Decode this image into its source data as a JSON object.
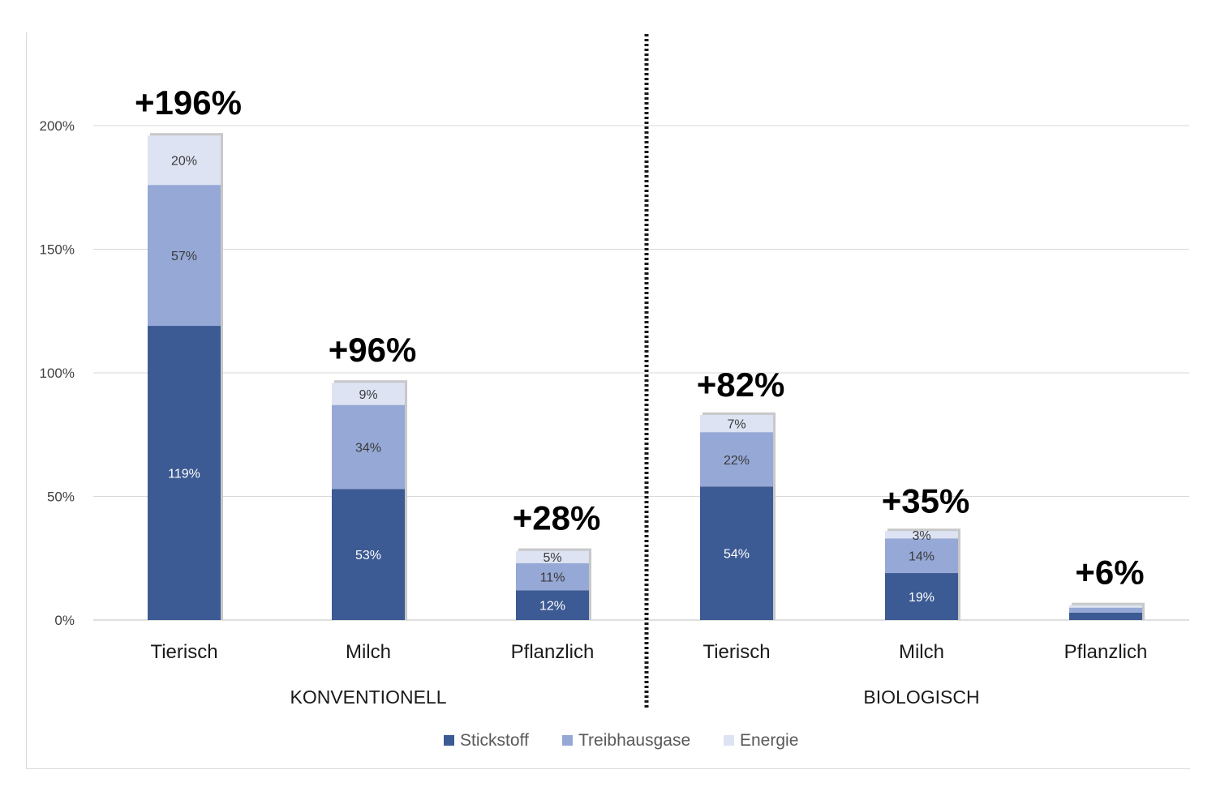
{
  "chart_data": {
    "type": "bar",
    "stacked": true,
    "groups": [
      {
        "label": "KONVENTIONELL",
        "categories": [
          "Tierisch",
          "Milch",
          "Pflanzlich"
        ]
      },
      {
        "label": "BIOLOGISCH",
        "categories": [
          "Tierisch",
          "Milch",
          "Pflanzlich"
        ]
      }
    ],
    "categories": [
      "Tierisch",
      "Milch",
      "Pflanzlich",
      "Tierisch",
      "Milch",
      "Pflanzlich"
    ],
    "series": [
      {
        "name": "Stickstoff",
        "color": "#3c5a93",
        "label_color": "#ffffff",
        "values": [
          119,
          53,
          12,
          54,
          19,
          3
        ],
        "labels": [
          "119%",
          "53%",
          "12%",
          "54%",
          "19%",
          ""
        ]
      },
      {
        "name": "Treibhausgase",
        "color": "#96a8d6",
        "label_color": "#3a3a3a",
        "values": [
          57,
          34,
          11,
          22,
          14,
          2
        ],
        "labels": [
          "57%",
          "34%",
          "11%",
          "22%",
          "14%",
          ""
        ]
      },
      {
        "name": "Energie",
        "color": "#dde3f3",
        "label_color": "#3a3a3a",
        "values": [
          20,
          9,
          5,
          7,
          3,
          1
        ],
        "labels": [
          "20%",
          "9%",
          "5%",
          "7%",
          "3%",
          ""
        ]
      }
    ],
    "totals": [
      "+196%",
      "+96%",
      "+28%",
      "+82%",
      "+35%",
      "+6%"
    ],
    "total_values": [
      196,
      96,
      28,
      82,
      35,
      6
    ],
    "yticks": [
      "0%",
      "50%",
      "100%",
      "150%",
      "200%"
    ],
    "ytick_values": [
      0,
      50,
      100,
      150,
      200
    ],
    "ylim": [
      0,
      200
    ],
    "grid": true,
    "group_separator": "dotted",
    "legend_position": "bottom-center"
  }
}
